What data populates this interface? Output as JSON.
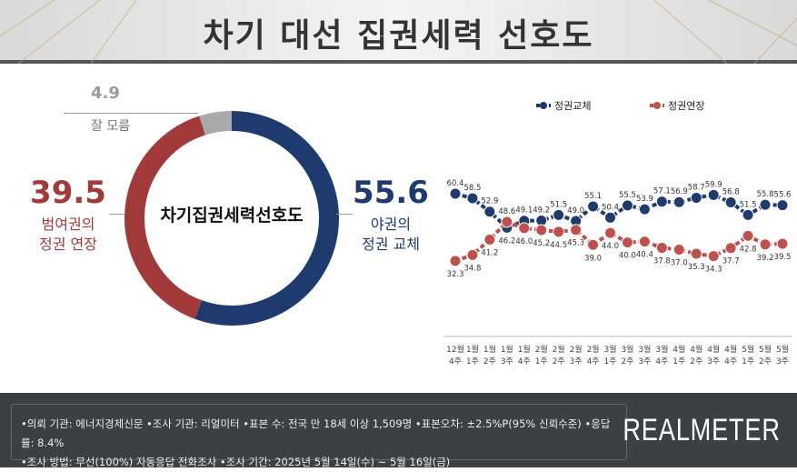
{
  "header": {
    "title": "차기 대선 집권세력 선호도"
  },
  "donut": {
    "center_label": "차기집권세력선호도",
    "slices": [
      {
        "name": "야권의 정권 교체",
        "value": 55.6,
        "color": "#1e3a6e"
      },
      {
        "name": "범여권의 정권 연장",
        "value": 39.5,
        "color": "#a33a3a"
      },
      {
        "name": "잘 모름",
        "value": 4.9,
        "color": "#aaaaaa"
      }
    ],
    "opposition": {
      "value": "55.6",
      "line1": "야권의",
      "line2": "정권 교체"
    },
    "ruling": {
      "value": "39.5",
      "line1": "범여권의",
      "line2": "정권 연장"
    },
    "unknown": {
      "value": "4.9",
      "label": "잘 모름"
    }
  },
  "chart_data": {
    "type": "line",
    "categories": [
      [
        "12월",
        "4주"
      ],
      [
        "1월",
        "1주"
      ],
      [
        "1월",
        "2주"
      ],
      [
        "1월",
        "3주"
      ],
      [
        "1월",
        "4주"
      ],
      [
        "2월",
        "1주"
      ],
      [
        "2월",
        "2주"
      ],
      [
        "2월",
        "3주"
      ],
      [
        "2월",
        "4주"
      ],
      [
        "3월",
        "1주"
      ],
      [
        "3월",
        "2주"
      ],
      [
        "3월",
        "3주"
      ],
      [
        "3월",
        "4주"
      ],
      [
        "4월",
        "1주"
      ],
      [
        "4월",
        "2주"
      ],
      [
        "4월",
        "3주"
      ],
      [
        "4월",
        "4주"
      ],
      [
        "5월",
        "1주"
      ],
      [
        "5월",
        "2주"
      ],
      [
        "5월",
        "3주"
      ]
    ],
    "series": [
      {
        "name": "정권교체",
        "color": "#1e3a6e",
        "values": [
          60.4,
          58.5,
          52.9,
          46.2,
          49.1,
          49.2,
          51.5,
          49.0,
          55.1,
          50.4,
          55.5,
          53.9,
          57.1,
          56.9,
          58.7,
          59.9,
          56.8,
          51.5,
          55.8,
          55.6
        ]
      },
      {
        "name": "정권연장",
        "color": "#c0504d",
        "values": [
          32.3,
          34.8,
          41.2,
          48.6,
          46.0,
          45.2,
          44.5,
          45.3,
          39.0,
          44.0,
          40.0,
          40.4,
          37.8,
          37.0,
          35.3,
          34.3,
          37.7,
          42.8,
          39.2,
          39.5
        ]
      }
    ],
    "legend": "top"
  },
  "footer": {
    "line1": "•의뢰 기관: 에너지경제신문 •조사 기관: 리얼미터 •표본 수: 전국 만 18세 이상 1,509명 •표본오차: ±2.5%P(95% 신뢰수준) •응답률: 8.4%",
    "line2": "•조사 방법: 무선(100%) 자동응답 전화조사 •조사 기간: 2025년 5월 14일(수) ~ 5월 16일(금)",
    "logo": "REALMETER"
  }
}
